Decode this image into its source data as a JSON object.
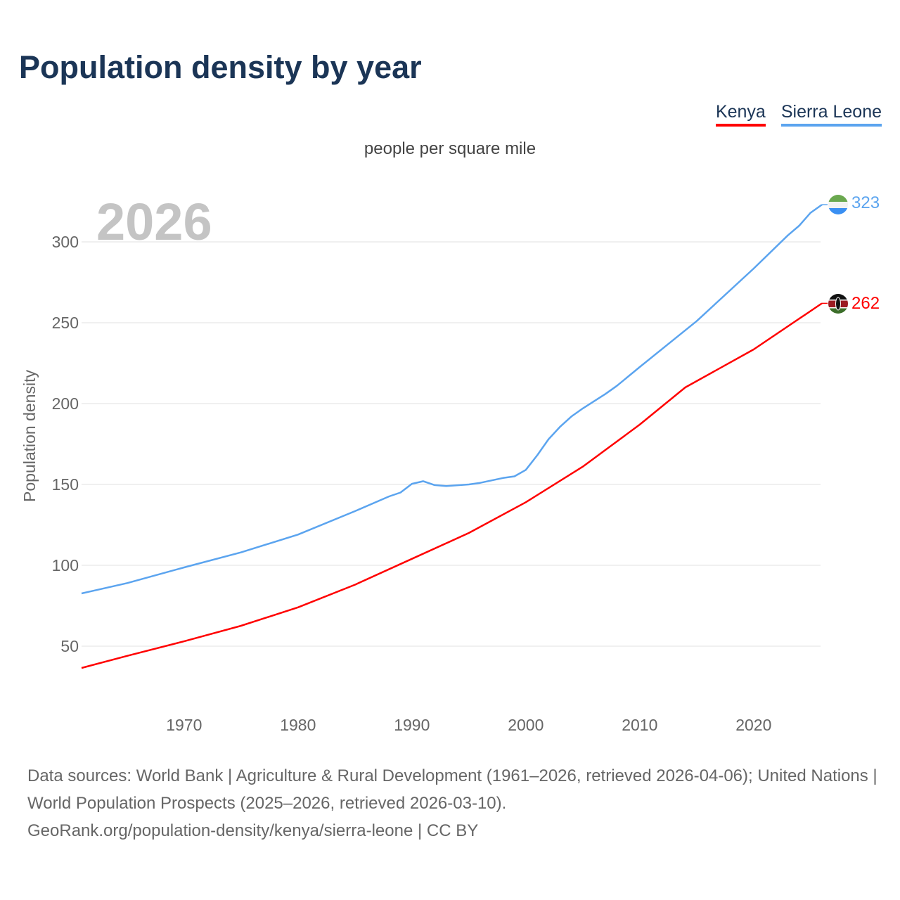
{
  "header": {
    "title": "Population density by year"
  },
  "chart_data": {
    "type": "line",
    "title": "Population density by year",
    "subtitle": "people per square mile",
    "ylabel": "Population density",
    "xlabel": "",
    "xlim": [
      1961,
      2026
    ],
    "ylim": [
      0,
      330
    ],
    "x_ticks": [
      "1970",
      "1980",
      "1990",
      "2000",
      "2010",
      "2020"
    ],
    "y_ticks": [
      "50",
      "100",
      "150",
      "200",
      "250",
      "300"
    ],
    "year_label": "2026",
    "grid": true,
    "legend_position": "top-right",
    "series": [
      {
        "name": "Kenya",
        "color": "#ff0000",
        "end_label": "262",
        "flag": "kenya-flag",
        "points": [
          [
            1961,
            36.5
          ],
          [
            1965,
            44
          ],
          [
            1970,
            53
          ],
          [
            1975,
            62.6
          ],
          [
            1980,
            74
          ],
          [
            1985,
            88
          ],
          [
            1990,
            104
          ],
          [
            1995,
            120
          ],
          [
            2000,
            139
          ],
          [
            2005,
            161
          ],
          [
            2010,
            187
          ],
          [
            2014,
            210
          ],
          [
            2020,
            233.5
          ],
          [
            2026,
            262
          ]
        ]
      },
      {
        "name": "Sierra Leone",
        "color": "#5ba4ef",
        "end_label": "323",
        "flag": "sierra-leone-flag",
        "points": [
          [
            1961,
            82.6
          ],
          [
            1965,
            89
          ],
          [
            1970,
            98.7
          ],
          [
            1975,
            108
          ],
          [
            1980,
            119
          ],
          [
            1985,
            133.5
          ],
          [
            1988,
            142.6
          ],
          [
            1989,
            145
          ],
          [
            1990,
            150.4
          ],
          [
            1991,
            152
          ],
          [
            1992,
            149.6
          ],
          [
            1993,
            149
          ],
          [
            1995,
            150
          ],
          [
            1996,
            151
          ],
          [
            1998,
            154
          ],
          [
            1999,
            155
          ],
          [
            2000,
            159
          ],
          [
            2001,
            168
          ],
          [
            2002,
            178
          ],
          [
            2003,
            185.6
          ],
          [
            2004,
            192
          ],
          [
            2005,
            197
          ],
          [
            2007,
            206
          ],
          [
            2008,
            211
          ],
          [
            2010,
            222.6
          ],
          [
            2015,
            251
          ],
          [
            2020,
            283.5
          ],
          [
            2023,
            304
          ],
          [
            2024,
            310
          ],
          [
            2025,
            318
          ],
          [
            2026,
            323
          ]
        ]
      }
    ]
  },
  "footer": {
    "line1": "Data sources: World Bank | Agriculture & Rural Development (1961–2026, retrieved 2026-04-06); United Nations | World Population Prospects (2025–2026, retrieved 2026-03-10).",
    "line2": "GeoRank.org/population-density/kenya/sierra-leone | CC BY"
  }
}
